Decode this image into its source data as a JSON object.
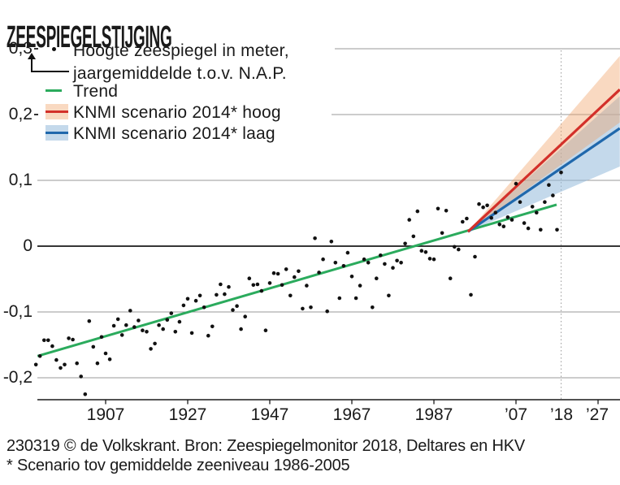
{
  "title": "ZEESPIEGELSTIJGING",
  "legend": {
    "observed_line1": "Hoogte zeespiegel in meter,",
    "observed_line2": "jaargemiddelde t.o.v. N.A.P.",
    "trend_label": "Trend",
    "scenario_high_label": "KNMI scenario 2014* hoog",
    "scenario_low_label": "KNMI scenario 2014* laag"
  },
  "footer": {
    "credit": "230319 © de Volkskrant. Bron: Zeespiegelmonitor 2018, Deltares en HKV",
    "note": "* Scenario tov gemiddelde zeeniveau 1986-2005"
  },
  "colors": {
    "ink": "#1a1a1a",
    "grid": "#999999",
    "axis": "#1a1a1a",
    "divider": "#9a9a9a",
    "trend": "#2bab5d",
    "scenario_high": "#d3302a",
    "scenario_low": "#2068ac",
    "band_high": "rgba(240,160,100,0.40)",
    "band_low": "rgba(147,186,218,0.55)",
    "point": "#111111"
  },
  "chart_data": {
    "type": "scatter",
    "title": "ZEESPIEGELSTIJGING",
    "unit": "Hoogte zeespiegel in meter, jaargemiddelde t.o.v. N.A.P.",
    "xlim": [
      1890,
      2032.3
    ],
    "ylim": [
      -0.25,
      0.33
    ],
    "grid": true,
    "divider_year": 2018,
    "y_ticks": [
      {
        "value": 0.3,
        "label": "0,3"
      },
      {
        "value": 0.2,
        "label": "0,2"
      },
      {
        "value": 0.1,
        "label": "0,1"
      },
      {
        "value": 0,
        "label": "0"
      },
      {
        "value": -0.1,
        "label": "-0,1"
      },
      {
        "value": -0.2,
        "label": "-0,2"
      }
    ],
    "x_ticks": [
      {
        "year": 1907,
        "label": "1907",
        "tick": true
      },
      {
        "year": 1927,
        "label": "1927",
        "tick": true
      },
      {
        "year": 1947,
        "label": "1947",
        "tick": true
      },
      {
        "year": 1967,
        "label": "1967",
        "tick": true
      },
      {
        "year": 1987,
        "label": "1987",
        "tick": true
      },
      {
        "year": 2007,
        "label": "’07",
        "tick": true
      },
      {
        "year": 2018,
        "label": "’18",
        "tick": false
      },
      {
        "year": 2027,
        "label": "’27",
        "tick": true
      }
    ],
    "series": {
      "observed": {
        "name": "Hoogte zeespiegel in meter, jaargemiddelde t.o.v. N.A.P.",
        "years": [
          1890,
          1891,
          1892,
          1893,
          1894,
          1895,
          1896,
          1897,
          1898,
          1899,
          1900,
          1901,
          1902,
          1903,
          1904,
          1905,
          1906,
          1907,
          1908,
          1909,
          1910,
          1911,
          1912,
          1913,
          1914,
          1915,
          1916,
          1917,
          1918,
          1919,
          1920,
          1921,
          1922,
          1923,
          1924,
          1925,
          1926,
          1927,
          1928,
          1929,
          1930,
          1931,
          1932,
          1933,
          1934,
          1935,
          1936,
          1937,
          1938,
          1939,
          1940,
          1941,
          1942,
          1943,
          1944,
          1945,
          1946,
          1947,
          1948,
          1949,
          1950,
          1951,
          1952,
          1953,
          1954,
          1955,
          1956,
          1957,
          1958,
          1959,
          1960,
          1961,
          1962,
          1963,
          1964,
          1965,
          1966,
          1967,
          1968,
          1969,
          1970,
          1971,
          1972,
          1973,
          1974,
          1975,
          1976,
          1977,
          1978,
          1979,
          1980,
          1981,
          1982,
          1983,
          1984,
          1985,
          1986,
          1987,
          1988,
          1989,
          1990,
          1991,
          1992,
          1993,
          1994,
          1995,
          1996,
          1997,
          1998,
          1999,
          2000,
          2001,
          2002,
          2003,
          2004,
          2005,
          2006,
          2007,
          2008,
          2009,
          2010,
          2011,
          2012,
          2013,
          2014,
          2015,
          2016,
          2017,
          2018
        ],
        "values": [
          -0.18,
          -0.167,
          -0.143,
          -0.143,
          -0.152,
          -0.173,
          -0.185,
          -0.18,
          -0.14,
          -0.142,
          -0.178,
          -0.198,
          -0.225,
          -0.114,
          -0.153,
          -0.178,
          -0.138,
          -0.163,
          -0.172,
          -0.121,
          -0.111,
          -0.135,
          -0.12,
          -0.098,
          -0.123,
          -0.113,
          -0.128,
          -0.13,
          -0.156,
          -0.148,
          -0.12,
          -0.126,
          -0.112,
          -0.102,
          -0.13,
          -0.115,
          -0.09,
          -0.08,
          -0.132,
          -0.083,
          -0.075,
          -0.093,
          -0.136,
          -0.122,
          -0.074,
          -0.058,
          -0.073,
          -0.062,
          -0.097,
          -0.091,
          -0.126,
          -0.107,
          -0.049,
          -0.059,
          -0.058,
          -0.068,
          -0.128,
          -0.056,
          -0.041,
          -0.042,
          -0.059,
          -0.035,
          -0.075,
          -0.047,
          -0.038,
          -0.095,
          -0.06,
          -0.093,
          0.012,
          -0.04,
          -0.02,
          -0.099,
          0.007,
          -0.025,
          -0.079,
          -0.03,
          -0.01,
          -0.046,
          -0.079,
          -0.06,
          -0.02,
          -0.025,
          -0.093,
          -0.049,
          -0.014,
          -0.027,
          -0.075,
          -0.033,
          -0.022,
          -0.025,
          0.004,
          0.04,
          0.015,
          0.053,
          -0.007,
          -0.009,
          -0.019,
          -0.02,
          0.057,
          0.02,
          0.054,
          -0.049,
          -0.001,
          -0.005,
          0.037,
          0.042,
          -0.074,
          -0.016,
          0.064,
          0.059,
          0.062,
          0.043,
          0.051,
          0.033,
          0.03,
          0.044,
          0.04,
          0.095,
          0.067,
          0.035,
          0.027,
          0.06,
          0.051,
          0.025,
          0.067,
          0.093,
          0.077,
          0.025,
          0.112
        ]
      },
      "trend": {
        "name": "Trend",
        "years": [
          1890.4,
          2016.9
        ],
        "values": [
          -0.167,
          0.063
        ]
      },
      "scenario_high": {
        "name": "KNMI scenario 2014* hoog",
        "start_year": 1995.3,
        "start_value": 0.022,
        "end_year": 2032.3,
        "end_value": 0.238,
        "band_end": [
          0.188,
          0.289
        ]
      },
      "scenario_low": {
        "name": "KNMI scenario 2014* laag",
        "start_year": 1995.3,
        "start_value": 0.022,
        "end_year": 2032.3,
        "end_value": 0.179,
        "band_end": [
          0.121,
          0.228
        ]
      }
    }
  }
}
